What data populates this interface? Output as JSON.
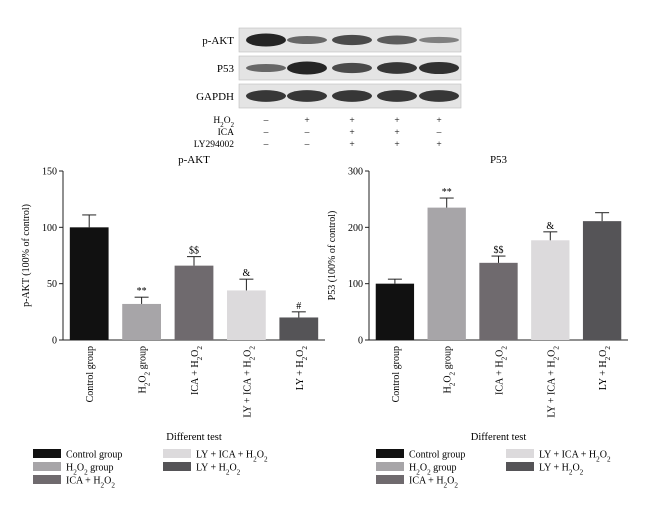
{
  "western_blot": {
    "bands": [
      {
        "label": "p-AKT",
        "intensities": [
          1.0,
          0.45,
          0.7,
          0.55,
          0.25
        ]
      },
      {
        "label": "P53",
        "intensities": [
          0.45,
          1.0,
          0.7,
          0.85,
          0.9
        ]
      },
      {
        "label": "GAPDH",
        "intensities": [
          0.85,
          0.85,
          0.85,
          0.85,
          0.85
        ]
      }
    ],
    "treatments": [
      {
        "label": "H2O2",
        "values": [
          "–",
          "+",
          "+",
          "+",
          "+"
        ]
      },
      {
        "label": "ICA",
        "values": [
          "–",
          "–",
          "+",
          "+",
          "–"
        ]
      },
      {
        "label": "LY294002",
        "values": [
          "–",
          "–",
          "+",
          "+",
          "+"
        ]
      }
    ]
  },
  "chart_data": [
    {
      "type": "bar",
      "title": "p-AKT",
      "ylabel": "p-AKT (100% of control)",
      "xlabel": "Different test",
      "ylim": [
        0,
        150
      ],
      "yticks": [
        0,
        50,
        100,
        150
      ],
      "categories": [
        "Control group",
        "H2O2 group",
        "ICA + H2O2",
        "LY + ICA + H2O2",
        "LY + H2O2"
      ],
      "values": [
        100,
        32,
        66,
        44,
        20
      ],
      "errors": [
        11,
        6,
        8,
        10,
        5
      ],
      "annotations": [
        "",
        "**",
        "$$",
        "&",
        "#"
      ],
      "colors": [
        "#111111",
        "#a7a5a8",
        "#6f6a6e",
        "#dcdadc",
        "#555457"
      ]
    },
    {
      "type": "bar",
      "title": "P53",
      "ylabel": "P53 (100% of control)",
      "xlabel": "Different test",
      "ylim": [
        0,
        300
      ],
      "yticks": [
        0,
        100,
        200,
        300
      ],
      "categories": [
        "Control group",
        "H2O2 group",
        "ICA + H2O2",
        "LY + ICA + H2O2",
        "LY + H2O2"
      ],
      "values": [
        100,
        235,
        137,
        177,
        211
      ],
      "errors": [
        8,
        17,
        12,
        15,
        15
      ],
      "annotations": [
        "",
        "**",
        "$$",
        "&",
        ""
      ],
      "colors": [
        "#111111",
        "#a7a5a8",
        "#6f6a6e",
        "#dcdadc",
        "#555457"
      ]
    }
  ],
  "legend": {
    "items": [
      "Control group",
      "H2O2 group",
      "ICA + H2O2",
      "LY + ICA + H2O2",
      "LY + H2O2"
    ],
    "colors": [
      "#111111",
      "#a7a5a8",
      "#6f6a6e",
      "#dcdadc",
      "#555457"
    ]
  }
}
